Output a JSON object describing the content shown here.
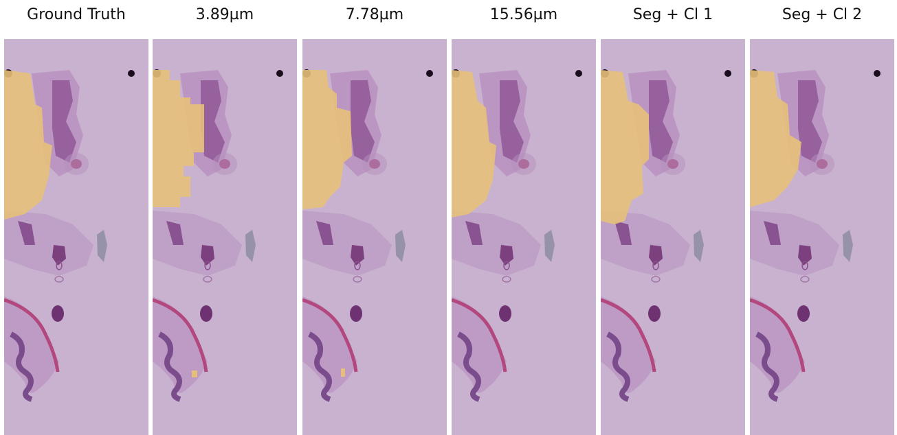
{
  "panels": [
    {
      "title": "Ground Truth"
    },
    {
      "title": "3.89µm"
    },
    {
      "title": "7.78µm"
    },
    {
      "title": "15.56µm"
    },
    {
      "title": "Seg + Cl 1"
    },
    {
      "title": "Seg + Cl 2"
    }
  ]
}
